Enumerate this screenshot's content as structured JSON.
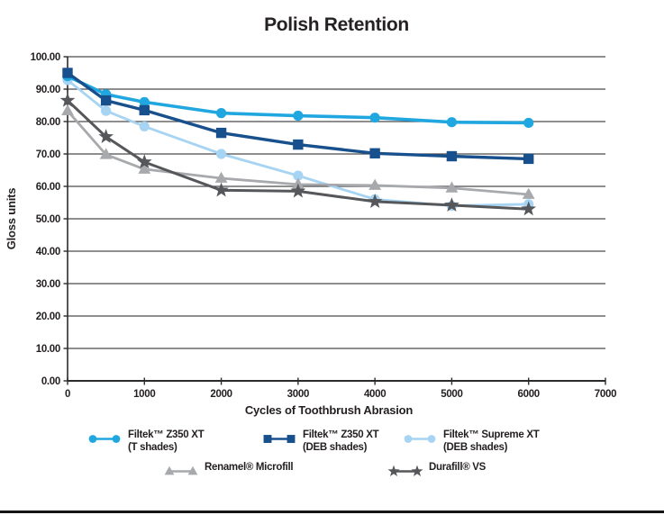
{
  "page": {
    "title": "Polish Retention"
  },
  "chart_data": {
    "type": "line",
    "title": "Polish Retention",
    "xlabel": "Cycles of Toothbrush Abrasion",
    "ylabel": "Gloss units",
    "xlim": [
      0,
      7000
    ],
    "ylim": [
      0,
      100
    ],
    "grid": "horizontal",
    "x_ticks": [
      "0",
      "1000",
      "2000",
      "3000",
      "4000",
      "5000",
      "6000",
      "7000"
    ],
    "y_ticks": [
      "0.00",
      "10.00",
      "20.00",
      "30.00",
      "40.00",
      "50.00",
      "60.00",
      "70.00",
      "80.00",
      "90.00",
      "100.00"
    ],
    "x": [
      0,
      500,
      1000,
      2000,
      3000,
      4000,
      5000,
      6000
    ],
    "series": [
      {
        "name": "Filtek™ Z350 XT",
        "sublabel": "(T shades)",
        "marker": "circle",
        "color": "#21a7e0",
        "values": [
          94.0,
          88.4,
          86.0,
          82.6,
          81.8,
          81.2,
          79.8,
          79.6
        ]
      },
      {
        "name": "Filtek™ Z350 XT",
        "sublabel": "(DEB shades)",
        "marker": "square",
        "color": "#17508d",
        "values": [
          95.0,
          86.5,
          83.5,
          76.5,
          72.9,
          70.2,
          69.3,
          68.5
        ]
      },
      {
        "name": "Filtek™ Supreme XT",
        "sublabel": "(DEB shades)",
        "marker": "circle",
        "color": "#a6d4f2",
        "values": [
          92.8,
          83.3,
          78.5,
          70.0,
          63.3,
          56.0,
          54.0,
          54.5
        ]
      },
      {
        "name": "Renamel® Microfill",
        "sublabel": "",
        "marker": "triangle",
        "color": "#a7a9ac",
        "values": [
          83.3,
          69.8,
          65.3,
          62.5,
          60.6,
          60.3,
          59.5,
          57.5
        ]
      },
      {
        "name": "Durafill® VS",
        "sublabel": "",
        "marker": "star",
        "color": "#56575a",
        "values": [
          86.5,
          75.3,
          67.5,
          58.8,
          58.5,
          55.3,
          54.2,
          53.0
        ]
      }
    ],
    "legend_position": "bottom",
    "colors": {
      "grid": "#4a4a4c",
      "axis": "#2b2b2d",
      "text": "#231f20"
    }
  }
}
